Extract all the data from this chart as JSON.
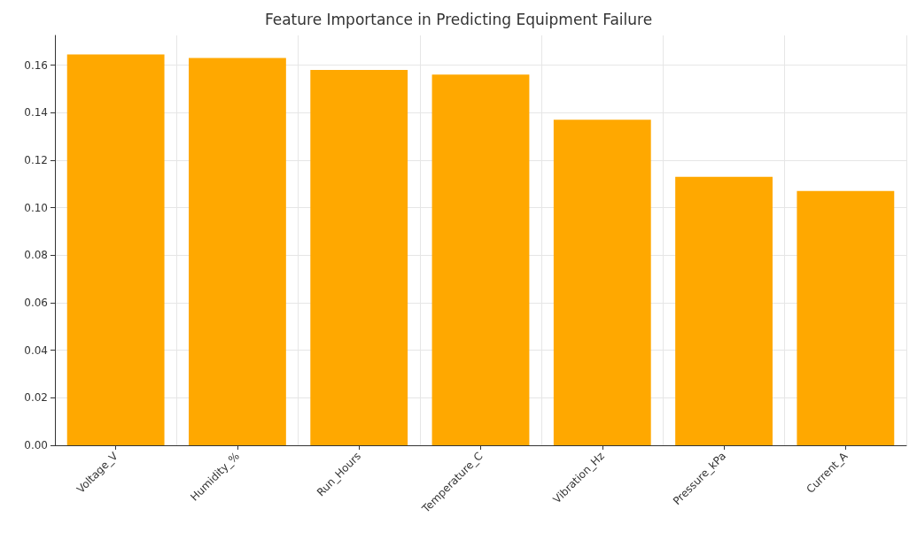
{
  "chart_data": {
    "type": "bar",
    "title": "Feature Importance in Predicting Equipment Failure",
    "categories": [
      "Voltage_V",
      "Humidity_%",
      "Run_Hours",
      "Temperature_C",
      "Vibration_Hz",
      "Pressure_kPa",
      "Current_A"
    ],
    "values": [
      0.1645,
      0.163,
      0.158,
      0.156,
      0.137,
      0.113,
      0.107
    ],
    "color": "#ffa800",
    "ylim": [
      0,
      0.1725
    ],
    "yticks": [
      {
        "value": 0,
        "label": "0.00"
      },
      {
        "value": 0.02,
        "label": "0.02"
      },
      {
        "value": 0.04,
        "label": "0.04"
      },
      {
        "value": 0.06,
        "label": "0.06"
      },
      {
        "value": 0.08,
        "label": "0.08"
      },
      {
        "value": 0.1,
        "label": "0.10"
      },
      {
        "value": 0.12,
        "label": "0.12"
      },
      {
        "value": 0.14,
        "label": "0.14"
      },
      {
        "value": 0.16,
        "label": "0.16"
      }
    ],
    "grid": true
  }
}
